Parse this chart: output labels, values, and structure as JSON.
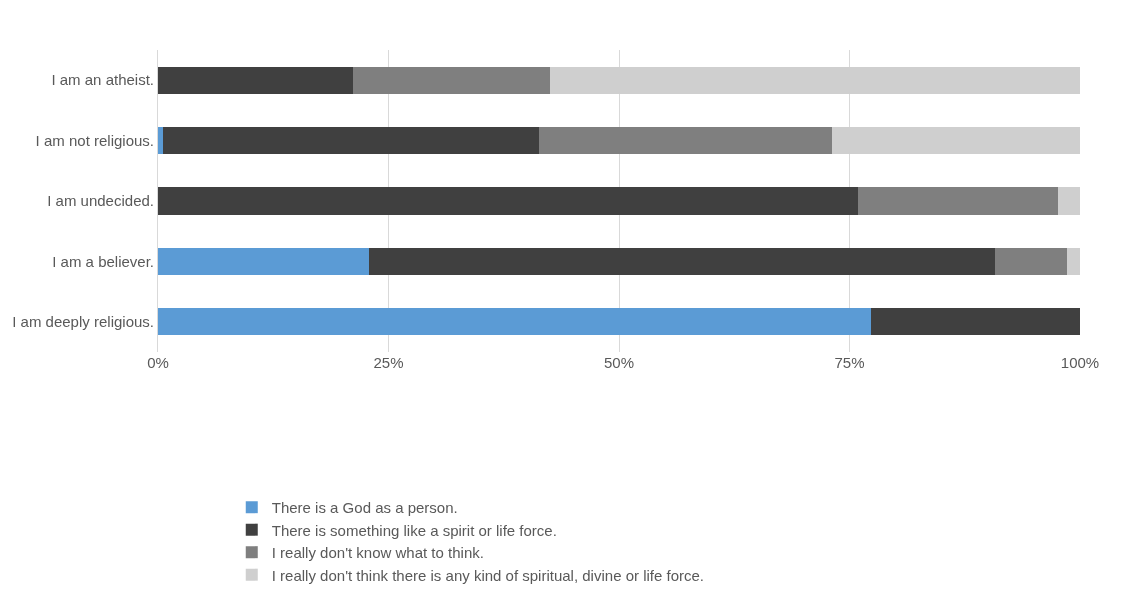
{
  "chart_data": {
    "type": "bar",
    "orientation": "horizontal",
    "stacked": true,
    "categories": [
      "I am an atheist.",
      "I am not religious.",
      "I am undecided.",
      "I am a believer.",
      "I am deeply religious."
    ],
    "series": [
      {
        "name": "There is a God as a person.",
        "color": "#5b9bd5",
        "values": [
          0,
          0.5,
          0,
          22.9,
          77.3
        ]
      },
      {
        "name": "There is something like a spirit or life force.",
        "color": "#404040",
        "values": [
          21.2,
          40.8,
          75.9,
          67.9,
          22.7
        ]
      },
      {
        "name": "I really don't know what to think.",
        "color": "#7f7f7f",
        "values": [
          21.3,
          31.8,
          21.7,
          7.8,
          0
        ]
      },
      {
        "name": "I really don't think there is any kind of spiritual, divine or life force.",
        "color": "#cfcfcf",
        "values": [
          57.5,
          26.9,
          2.4,
          1.4,
          0
        ]
      }
    ],
    "xlim": [
      0,
      100
    ],
    "xticks": [
      {
        "value": 0,
        "label": "0%"
      },
      {
        "value": 25,
        "label": "25%"
      },
      {
        "value": 50,
        "label": "50%"
      },
      {
        "value": 75,
        "label": "75%"
      },
      {
        "value": 100,
        "label": "100%"
      }
    ],
    "grid": "x",
    "legend": "bottom"
  }
}
